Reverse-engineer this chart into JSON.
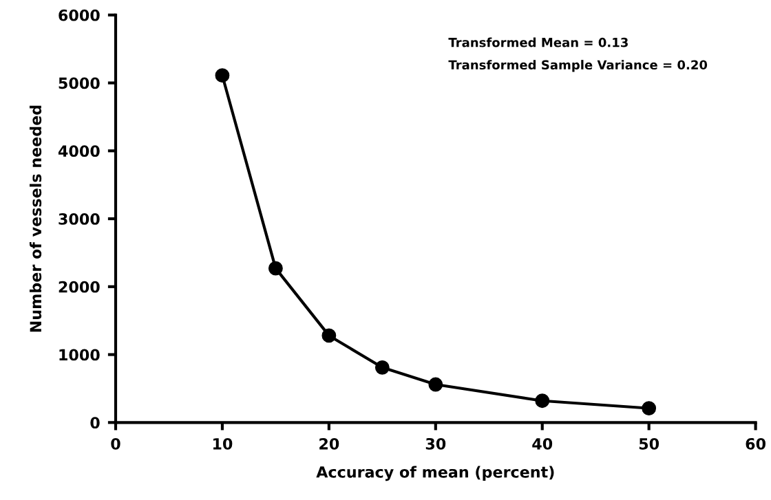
{
  "chart_data": {
    "type": "line",
    "xlabel": "Accuracy of mean (percent)",
    "ylabel": "Number of vessels needed",
    "x": [
      10,
      15,
      20,
      25,
      30,
      40,
      50
    ],
    "series": [
      {
        "color": "#000000",
        "values": [
          5110,
          2270,
          1280,
          810,
          560,
          320,
          210
        ]
      }
    ],
    "xlim": [
      0,
      60
    ],
    "xticks": [
      0,
      10,
      20,
      30,
      40,
      50,
      60
    ],
    "ylim": [
      0,
      6000
    ],
    "yticks": [
      0,
      1000,
      2000,
      3000,
      4000,
      5000,
      6000
    ],
    "marker": "circle",
    "line_style": "solid",
    "grid": false,
    "legend": false,
    "annotations": [
      "Transformed Mean = 0.13",
      "Transformed Sample Variance = 0.20"
    ]
  }
}
